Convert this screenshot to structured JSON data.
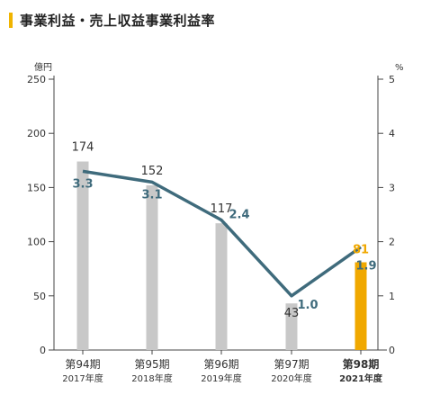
{
  "header": {
    "title": "事業利益・売上収益事業利益率"
  },
  "colors": {
    "accent": "#f0b400",
    "bar": "#c8c8c8",
    "bar_highlight": "#f0a800",
    "line": "#3f6b7c",
    "label_highlight": "#f0a800",
    "axis": "#444444"
  },
  "chart_data": {
    "type": "bar",
    "categories": [
      "第94期",
      "第95期",
      "第96期",
      "第97期",
      "第98期"
    ],
    "sub_categories": [
      "2017年度",
      "2018年度",
      "2019年度",
      "2020年度",
      "2021年度"
    ],
    "highlight_index": 4,
    "series": [
      {
        "type": "bar",
        "axis": "left",
        "values": [
          174,
          152,
          117,
          43,
          81
        ]
      },
      {
        "type": "line",
        "axis": "right",
        "values": [
          3.3,
          3.1,
          2.4,
          1.0,
          1.9
        ]
      }
    ],
    "ylabel_left": "億円",
    "ylabel_right": "%",
    "ylim_left": [
      0,
      250
    ],
    "ylim_right": [
      0,
      5
    ],
    "yticks_left": [
      0,
      50,
      100,
      150,
      200,
      250
    ],
    "yticks_right": [
      0,
      1,
      2,
      3,
      4,
      5
    ],
    "grid": false,
    "legend": "none"
  }
}
